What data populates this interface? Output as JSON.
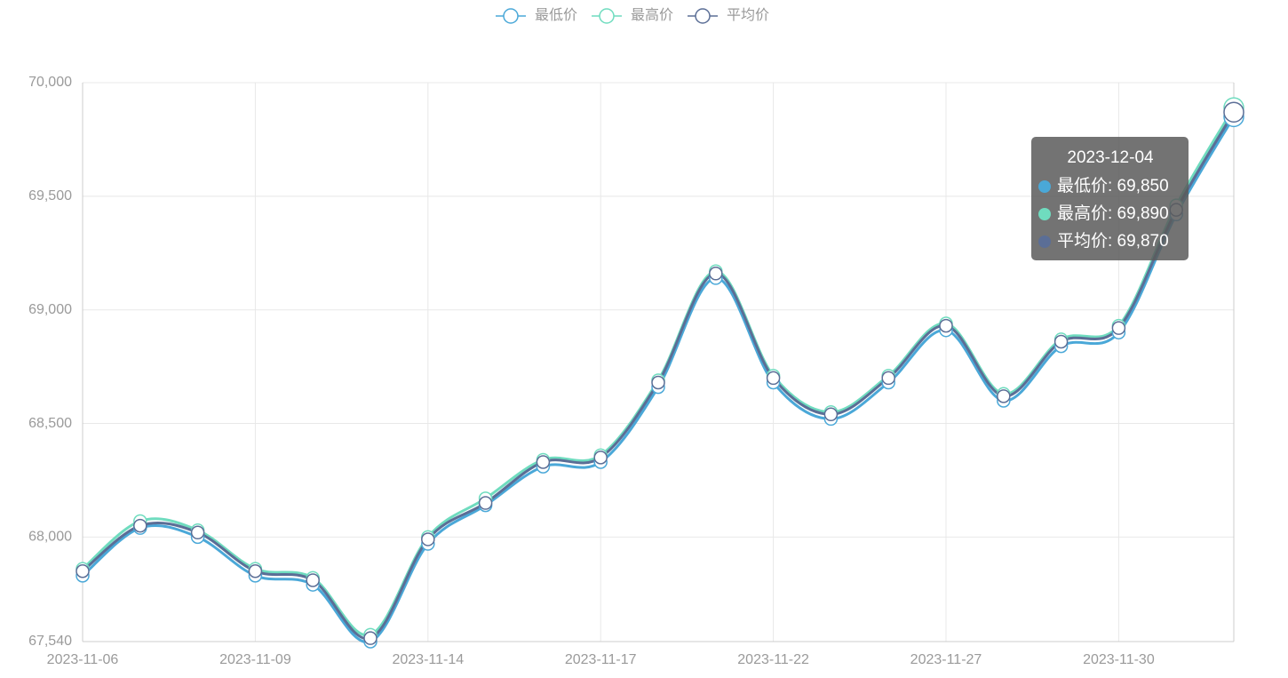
{
  "chart_data": {
    "type": "line",
    "smooth": true,
    "categories": [
      "2023-11-06",
      null,
      null,
      "2023-11-09",
      null,
      null,
      "2023-11-14",
      null,
      null,
      "2023-11-17",
      null,
      null,
      "2023-11-22",
      null,
      null,
      "2023-11-27",
      null,
      null,
      "2023-11-30",
      null,
      null
    ],
    "series": [
      {
        "name": "最低价",
        "color": "#4aa8d8",
        "values": [
          67830,
          68040,
          68000,
          67830,
          67790,
          67540,
          67970,
          68140,
          68310,
          68330,
          68660,
          69140,
          68680,
          68520,
          68680,
          68910,
          68600,
          68840,
          68900,
          69420,
          69850
        ]
      },
      {
        "name": "最高价",
        "color": "#6fdcbf",
        "values": [
          67860,
          68070,
          68030,
          67860,
          67820,
          67570,
          68000,
          68170,
          68340,
          68360,
          68690,
          69170,
          68710,
          68550,
          68710,
          68940,
          68630,
          68870,
          68930,
          69460,
          69890
        ]
      },
      {
        "name": "平均价",
        "color": "#5b6e96",
        "values": [
          67850,
          68050,
          68020,
          67850,
          67810,
          67555,
          67990,
          68150,
          68330,
          68350,
          68680,
          69160,
          68700,
          68540,
          68700,
          68930,
          68620,
          68860,
          68920,
          69440,
          69870
        ]
      }
    ],
    "ylim": [
      67540,
      70000
    ],
    "yticks": [
      {
        "value": 67540,
        "label": "67,540"
      },
      {
        "value": 68000,
        "label": "68,000"
      },
      {
        "value": 68500,
        "label": "68,500"
      },
      {
        "value": 69000,
        "label": "69,000"
      },
      {
        "value": 69500,
        "label": "69,500"
      },
      {
        "value": 70000,
        "label": "70,000"
      }
    ],
    "grid": true,
    "legend": "top",
    "tooltip": {
      "title": "2023-12-04",
      "rows": [
        "最低价: 69,850",
        "最高价: 69,890",
        "平均价: 69,870"
      ]
    }
  }
}
